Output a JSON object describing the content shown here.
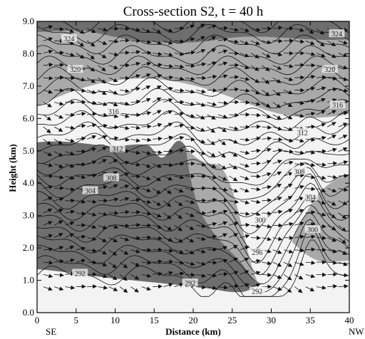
{
  "chart_data": {
    "type": "contour",
    "title": "Cross-section S2, t = 40 h",
    "xlabel": "Distance (km)",
    "ylabel": "Height (km)",
    "xlim": [
      0,
      40
    ],
    "ylim": [
      0.0,
      9.0
    ],
    "xticks": [
      "0",
      "5",
      "10",
      "15",
      "20",
      "25",
      "30",
      "35",
      "40"
    ],
    "yticks": [
      "0.0",
      "1.0",
      "2.0",
      "3.0",
      "4.0",
      "5.0",
      "6.0",
      "7.0",
      "8.0",
      "9.0"
    ],
    "direction_labels": {
      "left": "SE",
      "right": "NW"
    },
    "grid": false,
    "contour_levels": [
      {
        "value": "292",
        "x": 5.5,
        "y": 1.2
      },
      {
        "value": "292",
        "x": 19.6,
        "y": 0.9
      },
      {
        "value": "292",
        "x": 28.2,
        "y": 0.65
      },
      {
        "value": "296",
        "x": 28.2,
        "y": 1.85
      },
      {
        "value": "300",
        "x": 28.6,
        "y": 2.85
      },
      {
        "value": "300",
        "x": 35.3,
        "y": 2.55
      },
      {
        "value": "304",
        "x": 6.8,
        "y": 3.75
      },
      {
        "value": "304",
        "x": 35.0,
        "y": 3.55
      },
      {
        "value": "308",
        "x": 9.5,
        "y": 4.15
      },
      {
        "value": "308",
        "x": 33.6,
        "y": 4.35
      },
      {
        "value": "312",
        "x": 10.3,
        "y": 5.05
      },
      {
        "value": "312",
        "x": 34.0,
        "y": 5.55
      },
      {
        "value": "316",
        "x": 9.8,
        "y": 6.2
      },
      {
        "value": "316",
        "x": 38.5,
        "y": 6.4
      },
      {
        "value": "320",
        "x": 4.9,
        "y": 7.5
      },
      {
        "value": "320",
        "x": 37.5,
        "y": 7.5
      },
      {
        "value": "324",
        "x": 4.1,
        "y": 8.45
      },
      {
        "value": "324",
        "x": 38.4,
        "y": 8.6
      }
    ],
    "colors": {
      "dark": "#6e6e6e",
      "mid": "#a9a9a9",
      "light": "#f3f3f3",
      "lines": "#111111"
    }
  }
}
